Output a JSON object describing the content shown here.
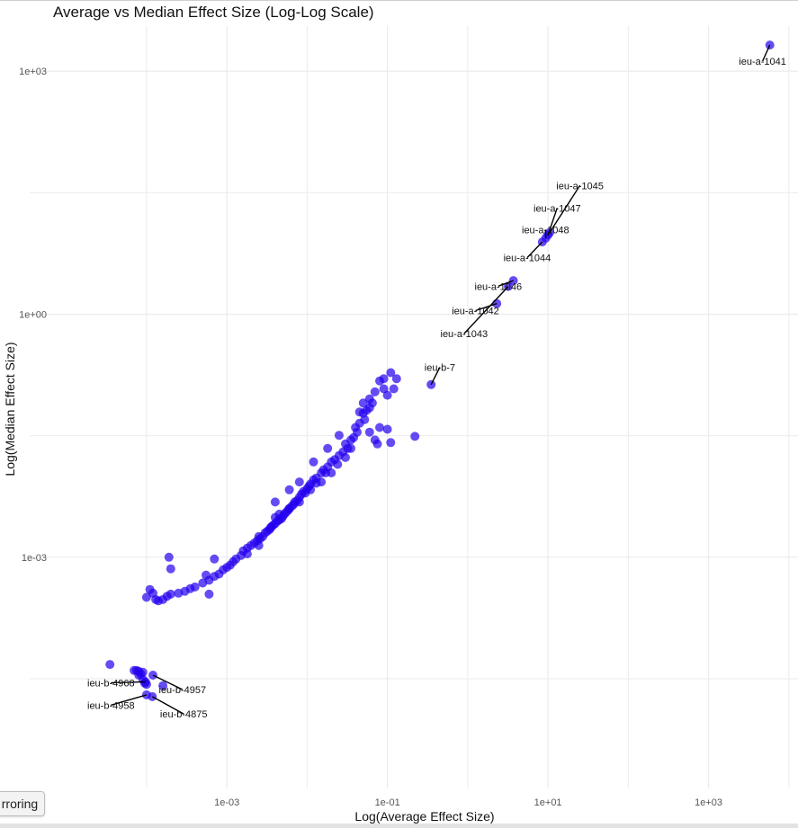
{
  "ui": {
    "button_label": "rroring"
  },
  "colors": {
    "points": "#2200ee",
    "grid": "#ebebeb",
    "background": "#ffffff"
  },
  "chart_data": {
    "type": "scatter",
    "title": "Average vs Median Effect Size (Log-Log Scale)",
    "xlabel": "Log(Average Effect Size)",
    "ylabel": "Log(Median Effect Size)",
    "x_scale": "log10",
    "y_scale": "log10",
    "xlim": [
      3.5e-06,
      13000
    ],
    "ylim": [
      1.4e-06,
      3600
    ],
    "x_ticks": [
      {
        "value": 0.001,
        "label": "1e-03"
      },
      {
        "value": 0.1,
        "label": "1e-01"
      },
      {
        "value": 10,
        "label": "1e+01"
      },
      {
        "value": 1000,
        "label": "1e+03"
      }
    ],
    "y_ticks": [
      {
        "value": 0.001,
        "label": "1e-03"
      },
      {
        "value": 1,
        "label": "1e+00"
      },
      {
        "value": 1000,
        "label": "1e+03"
      }
    ],
    "grid": true,
    "legend": "none",
    "point_alpha": 0.7,
    "labeled_points": [
      {
        "id": "ieu-a-1041",
        "x": 5800,
        "y": 2100,
        "label_x": 4700,
        "label_y": 1200
      },
      {
        "id": "ieu-a-1045",
        "x": 10.5,
        "y": 10.2,
        "label_x": 25,
        "label_y": 35
      },
      {
        "id": "ieu-a-1047",
        "x": 10.0,
        "y": 9.5,
        "label_x": 13,
        "label_y": 18.5
      },
      {
        "id": "ieu-a-1048",
        "x": 9.4,
        "y": 8.7,
        "label_x": 9.3,
        "label_y": 10
      },
      {
        "id": "ieu-a-1044",
        "x": 8.5,
        "y": 7.8,
        "label_x": 5.5,
        "label_y": 4.5
      },
      {
        "id": "ieu-a-1046",
        "x": 3.7,
        "y": 2.6,
        "label_x": 2.4,
        "label_y": 2.0
      },
      {
        "id": "ieu-a-1042",
        "x": 2.3,
        "y": 1.35,
        "label_x": 1.25,
        "label_y": 1.0
      },
      {
        "id": "ieu-a-1043",
        "x": 3.2,
        "y": 2.2,
        "label_x": 0.9,
        "label_y": 0.52
      },
      {
        "id": "ieu-b-7",
        "x": 0.35,
        "y": 0.135,
        "label_x": 0.45,
        "label_y": 0.2
      },
      {
        "id": "ieu-b-4968",
        "x": 9.7e-05,
        "y": 2.9e-05,
        "label_x": 3.6e-05,
        "label_y": 2.55e-05
      },
      {
        "id": "ieu-b-4957",
        "x": 0.00012,
        "y": 3.5e-05,
        "label_x": 0.00028,
        "label_y": 2.1e-05
      },
      {
        "id": "ieu-b-4958",
        "x": 0.0001,
        "y": 2e-05,
        "label_x": 3.6e-05,
        "label_y": 1.35e-05
      },
      {
        "id": "ieu-b-4875",
        "x": 0.000118,
        "y": 1.9e-05,
        "label_x": 0.00029,
        "label_y": 1.05e-05
      }
    ],
    "points": [
      [
        5800,
        2100
      ],
      [
        10.5,
        10.2
      ],
      [
        10.0,
        9.5
      ],
      [
        9.4,
        8.7
      ],
      [
        8.5,
        7.8
      ],
      [
        3.7,
        2.6
      ],
      [
        3.2,
        2.2
      ],
      [
        2.3,
        1.35
      ],
      [
        0.35,
        0.135
      ],
      [
        0.22,
        0.031
      ],
      [
        0.13,
        0.16
      ],
      [
        0.11,
        0.19
      ],
      [
        0.12,
        0.12
      ],
      [
        0.1,
        0.038
      ],
      [
        0.11,
        0.026
      ],
      [
        0.09,
        0.16
      ],
      [
        0.08,
        0.15
      ],
      [
        0.09,
        0.12
      ],
      [
        0.07,
        0.11
      ],
      [
        0.08,
        0.04
      ],
      [
        0.07,
        0.028
      ],
      [
        0.075,
        0.025
      ],
      [
        0.1,
        0.1
      ],
      [
        0.06,
        0.09
      ],
      [
        0.065,
        0.08
      ],
      [
        0.06,
        0.07
      ],
      [
        0.055,
        0.065
      ],
      [
        0.05,
        0.06
      ],
      [
        0.052,
        0.05
      ],
      [
        0.045,
        0.045
      ],
      [
        0.04,
        0.04
      ],
      [
        0.042,
        0.035
      ],
      [
        0.038,
        0.03
      ],
      [
        0.035,
        0.028
      ],
      [
        0.03,
        0.025
      ],
      [
        0.032,
        0.022
      ],
      [
        0.028,
        0.02
      ],
      [
        0.025,
        0.018
      ],
      [
        0.022,
        0.016
      ],
      [
        0.02,
        0.015
      ],
      [
        0.018,
        0.013
      ],
      [
        0.016,
        0.012
      ],
      [
        0.015,
        0.011
      ],
      [
        0.013,
        0.0095
      ],
      [
        0.012,
        0.009
      ],
      [
        0.011,
        0.008
      ],
      [
        0.0105,
        0.0075
      ],
      [
        0.01,
        0.007
      ],
      [
        0.009,
        0.0065
      ],
      [
        0.0095,
        0.0062
      ],
      [
        0.0085,
        0.006
      ],
      [
        0.008,
        0.0055
      ],
      [
        0.0075,
        0.005
      ],
      [
        0.007,
        0.0048
      ],
      [
        0.0068,
        0.0045
      ],
      [
        0.0065,
        0.0043
      ],
      [
        0.006,
        0.004
      ],
      [
        0.0058,
        0.0038
      ],
      [
        0.0055,
        0.0036
      ],
      [
        0.0052,
        0.0034
      ],
      [
        0.005,
        0.0032
      ],
      [
        0.0048,
        0.003
      ],
      [
        0.0045,
        0.0029
      ],
      [
        0.0043,
        0.0028
      ],
      [
        0.004,
        0.0026
      ],
      [
        0.0038,
        0.0025
      ],
      [
        0.0036,
        0.0024
      ],
      [
        0.0034,
        0.0022
      ],
      [
        0.0032,
        0.0021
      ],
      [
        0.003,
        0.002
      ],
      [
        0.0028,
        0.0018
      ],
      [
        0.0026,
        0.0017
      ],
      [
        0.0024,
        0.0016
      ],
      [
        0.0022,
        0.0015
      ],
      [
        0.002,
        0.0014
      ],
      [
        0.0018,
        0.0013
      ],
      [
        0.0016,
        0.0012
      ],
      [
        0.0015,
        0.00105
      ],
      [
        0.0013,
        0.00095
      ],
      [
        0.0012,
        0.00088
      ],
      [
        0.0011,
        0.0008
      ],
      [
        0.001,
        0.00075
      ],
      [
        0.0009,
        0.0007
      ],
      [
        0.0008,
        0.00062
      ],
      [
        0.0007,
        0.00058
      ],
      [
        0.0006,
        0.00052
      ],
      [
        0.0005,
        0.00048
      ],
      [
        0.0004,
        0.00043
      ],
      [
        0.00035,
        0.00041
      ],
      [
        0.0003,
        0.00038
      ],
      [
        0.00025,
        0.00036
      ],
      [
        0.0002,
        0.00035
      ],
      [
        0.00018,
        0.00033
      ],
      [
        0.00016,
        0.0003
      ],
      [
        0.00014,
        0.00029
      ],
      [
        0.00013,
        0.0003
      ],
      [
        0.00012,
        0.00036
      ],
      [
        0.00011,
        0.0004
      ],
      [
        0.0001,
        0.00032
      ],
      [
        0.00019,
        0.001
      ],
      [
        0.0002,
        0.00072
      ],
      [
        0.0006,
        0.00035
      ],
      [
        0.00055,
        0.0006
      ],
      [
        0.0007,
        0.00095
      ],
      [
        0.0025,
        0.0018
      ],
      [
        0.004,
        0.0048
      ],
      [
        0.006,
        0.0068
      ],
      [
        0.008,
        0.0085
      ],
      [
        0.012,
        0.015
      ],
      [
        0.018,
        0.022
      ],
      [
        0.025,
        0.032
      ],
      [
        0.045,
        0.062
      ],
      [
        0.05,
        0.08
      ],
      [
        0.015,
        0.0085
      ],
      [
        0.02,
        0.011
      ],
      [
        0.03,
        0.017
      ],
      [
        0.004,
        0.0031
      ],
      [
        0.006,
        0.004
      ],
      [
        0.008,
        0.0048
      ],
      [
        0.0035,
        0.0023
      ],
      [
        0.0045,
        0.0034
      ],
      [
        0.011,
        0.0068
      ],
      [
        0.013,
        0.0082
      ],
      [
        0.017,
        0.011
      ],
      [
        0.024,
        0.014
      ],
      [
        0.035,
        0.022
      ],
      [
        0.06,
        0.035
      ],
      [
        0.0025,
        0.0014
      ],
      [
        0.0018,
        0.0011
      ],
      [
        3.5e-05,
        4.75e-05
      ],
      [
        7e-05,
        4e-05
      ],
      [
        7.5e-05,
        4e-05
      ],
      [
        8e-05,
        3.9e-05
      ],
      [
        8.5e-05,
        3.6e-05
      ],
      [
        9e-05,
        3.1e-05
      ],
      [
        9.5e-05,
        2.8e-05
      ],
      [
        0.0001,
        2.7e-05
      ],
      [
        9.7e-05,
        2.9e-05
      ],
      [
        0.00012,
        3.5e-05
      ],
      [
        0.00016,
        2.6e-05
      ],
      [
        0.0001,
        2e-05
      ],
      [
        0.000118,
        1.9e-05
      ],
      [
        9e-05,
        3.8e-05
      ],
      [
        8e-05,
        3.5e-05
      ]
    ]
  }
}
